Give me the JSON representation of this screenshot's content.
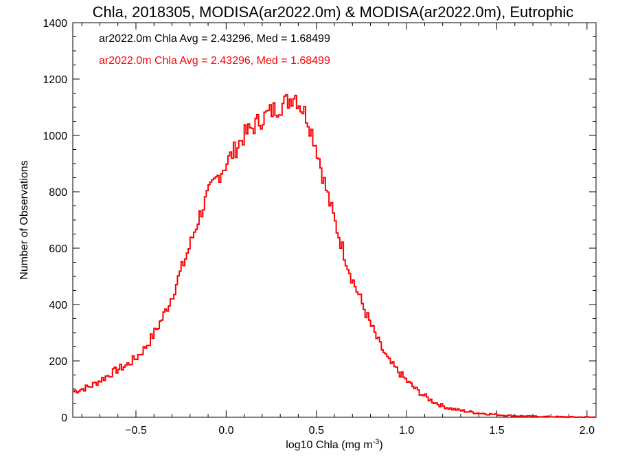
{
  "chart_data": {
    "type": "histogram-step",
    "title": "Chla, 2018305, MODISA(ar2022.0m) & MODISA(ar2022.0m), Eutrophic",
    "xlabel_main": "log10 Chla (mg m",
    "xlabel_sup": "-3",
    "xlabel_end": ")",
    "ylabel": "Number of Observations",
    "xlim": [
      -0.85,
      2.05
    ],
    "ylim": [
      0,
      1400
    ],
    "xticks": [
      -0.5,
      0.0,
      0.5,
      1.0,
      1.5,
      2.0
    ],
    "xtick_labels": [
      "−0.5",
      "0.0",
      "0.5",
      "1.0",
      "1.5",
      "2.0"
    ],
    "yticks": [
      0,
      200,
      400,
      600,
      800,
      1000,
      1200,
      1400
    ],
    "ytick_labels": [
      "0",
      "200",
      "400",
      "600",
      "800",
      "1000",
      "1200",
      "1400"
    ],
    "legend": [
      {
        "text": "ar2022.0m Chla Avg = 2.43296, Med = 1.68499",
        "color": "#000000"
      },
      {
        "text": "ar2022.0m Chla Avg = 2.43296, Med = 1.68499",
        "color": "#ff0000"
      }
    ],
    "bin_width": 0.01,
    "series": [
      {
        "color": "#ff0000",
        "points": [
          [
            -0.85,
            90
          ],
          [
            -0.8,
            100
          ],
          [
            -0.75,
            110
          ],
          [
            -0.7,
            130
          ],
          [
            -0.65,
            150
          ],
          [
            -0.6,
            170
          ],
          [
            -0.55,
            185
          ],
          [
            -0.5,
            210
          ],
          [
            -0.45,
            245
          ],
          [
            -0.4,
            295
          ],
          [
            -0.35,
            355
          ],
          [
            -0.3,
            430
          ],
          [
            -0.25,
            520
          ],
          [
            -0.2,
            610
          ],
          [
            -0.15,
            710
          ],
          [
            -0.1,
            790
          ],
          [
            -0.05,
            850
          ],
          [
            0.0,
            900
          ],
          [
            0.05,
            950
          ],
          [
            0.1,
            1000
          ],
          [
            0.15,
            1030
          ],
          [
            0.2,
            1060
          ],
          [
            0.25,
            1085
          ],
          [
            0.3,
            1105
          ],
          [
            0.35,
            1125
          ],
          [
            0.38,
            1150
          ],
          [
            0.4,
            1120
          ],
          [
            0.45,
            1065
          ],
          [
            0.5,
            960
          ],
          [
            0.55,
            820
          ],
          [
            0.6,
            700
          ],
          [
            0.65,
            590
          ],
          [
            0.7,
            490
          ],
          [
            0.75,
            410
          ],
          [
            0.8,
            330
          ],
          [
            0.85,
            260
          ],
          [
            0.9,
            200
          ],
          [
            0.95,
            165
          ],
          [
            1.0,
            130
          ],
          [
            1.05,
            100
          ],
          [
            1.1,
            75
          ],
          [
            1.15,
            55
          ],
          [
            1.2,
            40
          ],
          [
            1.25,
            30
          ],
          [
            1.3,
            24
          ],
          [
            1.35,
            19
          ],
          [
            1.4,
            15
          ],
          [
            1.45,
            12
          ],
          [
            1.5,
            9
          ],
          [
            1.55,
            7
          ],
          [
            1.6,
            5
          ],
          [
            1.7,
            3
          ],
          [
            1.8,
            2
          ],
          [
            1.9,
            1
          ],
          [
            2.05,
            0
          ]
        ]
      }
    ]
  }
}
